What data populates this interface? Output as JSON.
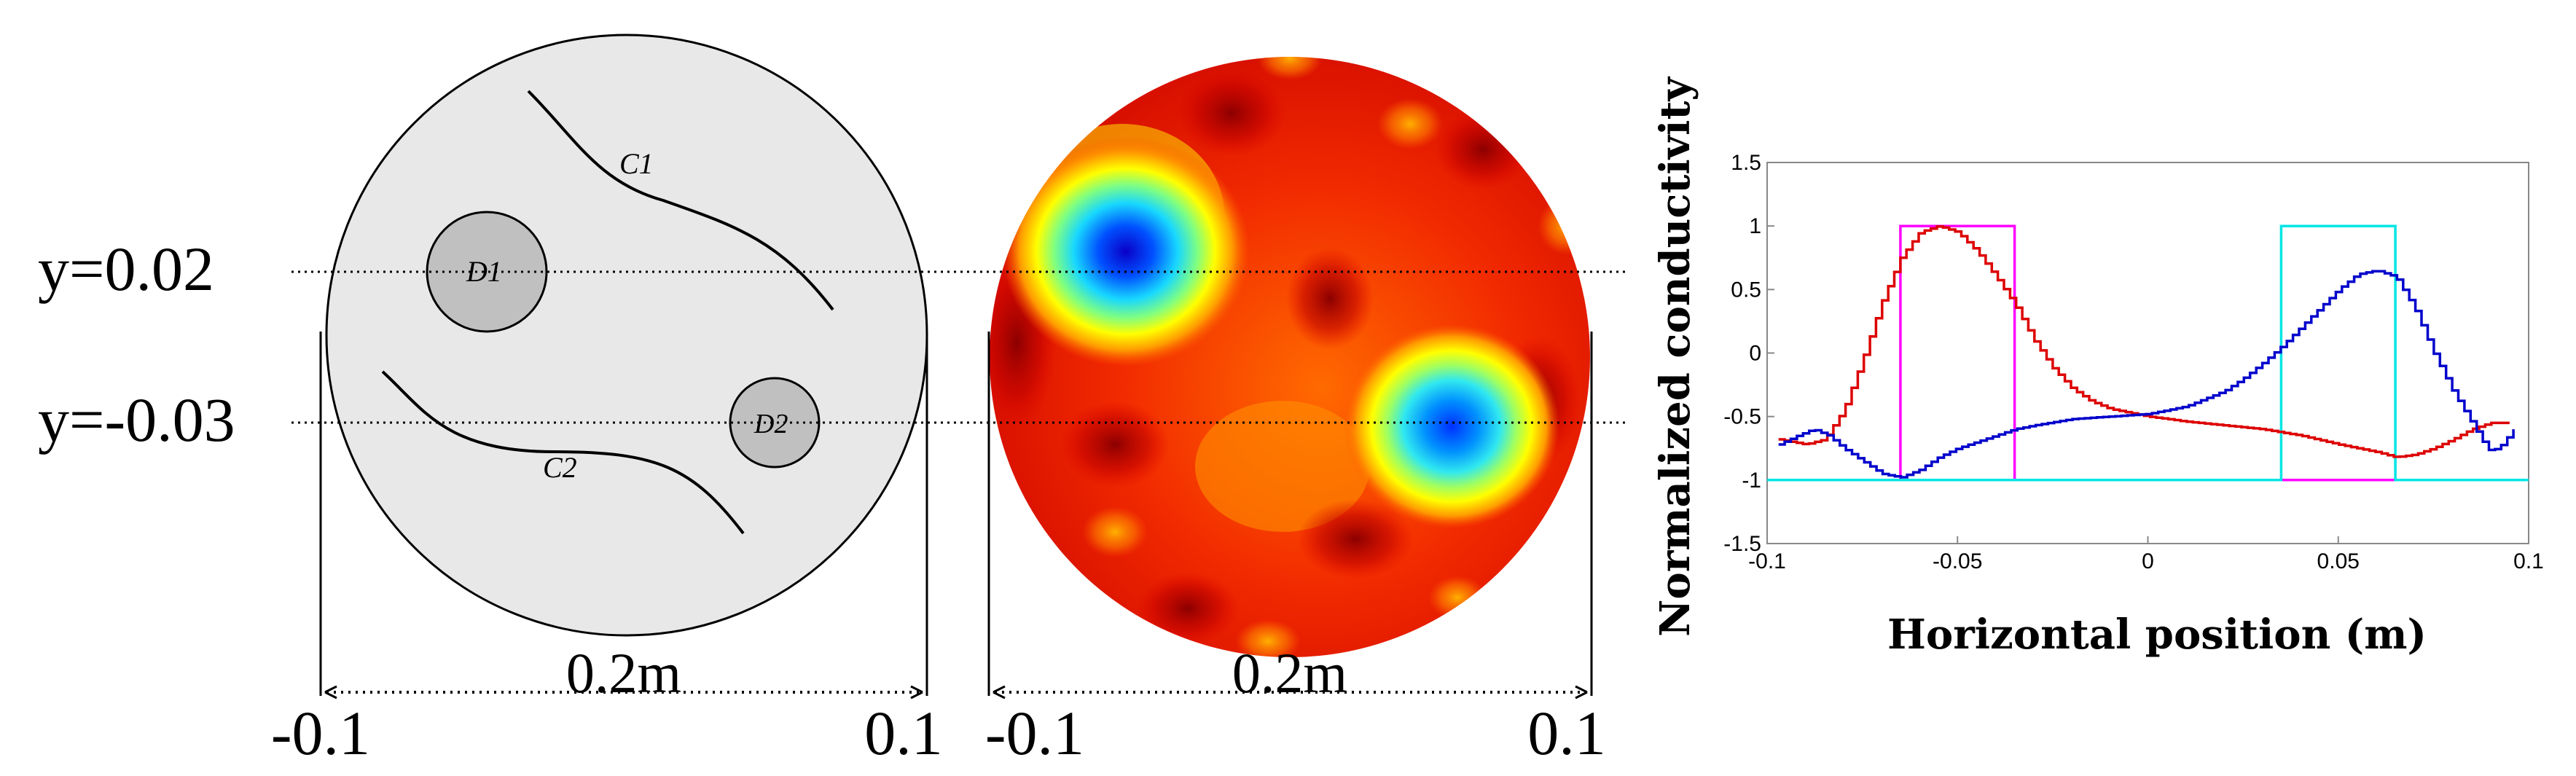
{
  "schematic": {
    "y_labels": [
      "y=0.02",
      "y=-0.03"
    ],
    "curve_labels": [
      "C1",
      "C2"
    ],
    "inclusion_labels": [
      "D1",
      "D2"
    ],
    "width_label": "0.2m",
    "edge_labels": [
      "-0.1",
      "0.1"
    ]
  },
  "reconstruction": {
    "width_label": "0.2m",
    "edge_labels": [
      "-0.1",
      "0.1"
    ],
    "colormap": "jet"
  },
  "chart_data": {
    "type": "line",
    "title": "",
    "xlabel": "Horizontal position (m)",
    "ylabel": "Normalized conductivity",
    "xlim": [
      -0.1,
      0.1
    ],
    "ylim": [
      -1.5,
      1.5
    ],
    "xticks": [
      "-0.1",
      "-0.05",
      "0",
      "0.05",
      "0.1"
    ],
    "yticks": [
      "1.5",
      "1",
      "0.5",
      "0",
      "-0.5",
      "-1",
      "-1.5"
    ],
    "grid": false,
    "series": [
      {
        "color": "#ff00ff",
        "step": true,
        "x": [
          -0.1,
          -0.065,
          -0.065,
          -0.035,
          -0.035,
          0.1
        ],
        "y": [
          -1,
          -1,
          1,
          1,
          -1,
          -1
        ]
      },
      {
        "color": "#00e5e5",
        "step": true,
        "x": [
          -0.1,
          0.035,
          0.035,
          0.065,
          0.065,
          0.1
        ],
        "y": [
          -1,
          -1,
          1,
          1,
          -1,
          -1
        ]
      },
      {
        "color": "#dd0000",
        "x": [
          -0.097,
          -0.09,
          -0.085,
          -0.08,
          -0.075,
          -0.07,
          -0.065,
          -0.06,
          -0.055,
          -0.05,
          -0.045,
          -0.04,
          -0.035,
          -0.03,
          -0.025,
          -0.02,
          -0.015,
          -0.01,
          -0.005,
          0,
          0.01,
          0.02,
          0.03,
          0.04,
          0.05,
          0.06,
          0.065,
          0.07,
          0.075,
          0.08,
          0.085,
          0.09,
          0.095
        ],
        "y": [
          -0.68,
          -0.72,
          -0.68,
          -0.45,
          -0.05,
          0.4,
          0.75,
          0.95,
          1.0,
          0.95,
          0.8,
          0.6,
          0.38,
          0.1,
          -0.12,
          -0.28,
          -0.38,
          -0.44,
          -0.47,
          -0.5,
          -0.54,
          -0.57,
          -0.6,
          -0.65,
          -0.72,
          -0.78,
          -0.82,
          -0.8,
          -0.75,
          -0.68,
          -0.6,
          -0.55,
          -0.55
        ]
      },
      {
        "color": "#0000cc",
        "x": [
          -0.097,
          -0.092,
          -0.088,
          -0.084,
          -0.08,
          -0.075,
          -0.07,
          -0.065,
          -0.06,
          -0.055,
          -0.05,
          -0.045,
          -0.04,
          -0.035,
          -0.03,
          -0.02,
          -0.01,
          0,
          0.01,
          0.02,
          0.025,
          0.03,
          0.035,
          0.04,
          0.045,
          0.05,
          0.055,
          0.06,
          0.065,
          0.07,
          0.075,
          0.08,
          0.085,
          0.088,
          0.09,
          0.093,
          0.096
        ],
        "y": [
          -0.72,
          -0.65,
          -0.6,
          -0.65,
          -0.75,
          -0.85,
          -0.95,
          -0.98,
          -0.92,
          -0.82,
          -0.75,
          -0.7,
          -0.65,
          -0.6,
          -0.57,
          -0.52,
          -0.5,
          -0.48,
          -0.42,
          -0.3,
          -0.2,
          -0.08,
          0.05,
          0.2,
          0.35,
          0.5,
          0.62,
          0.65,
          0.6,
          0.35,
          0.0,
          -0.3,
          -0.55,
          -0.7,
          -0.78,
          -0.72,
          -0.6
        ]
      }
    ]
  }
}
